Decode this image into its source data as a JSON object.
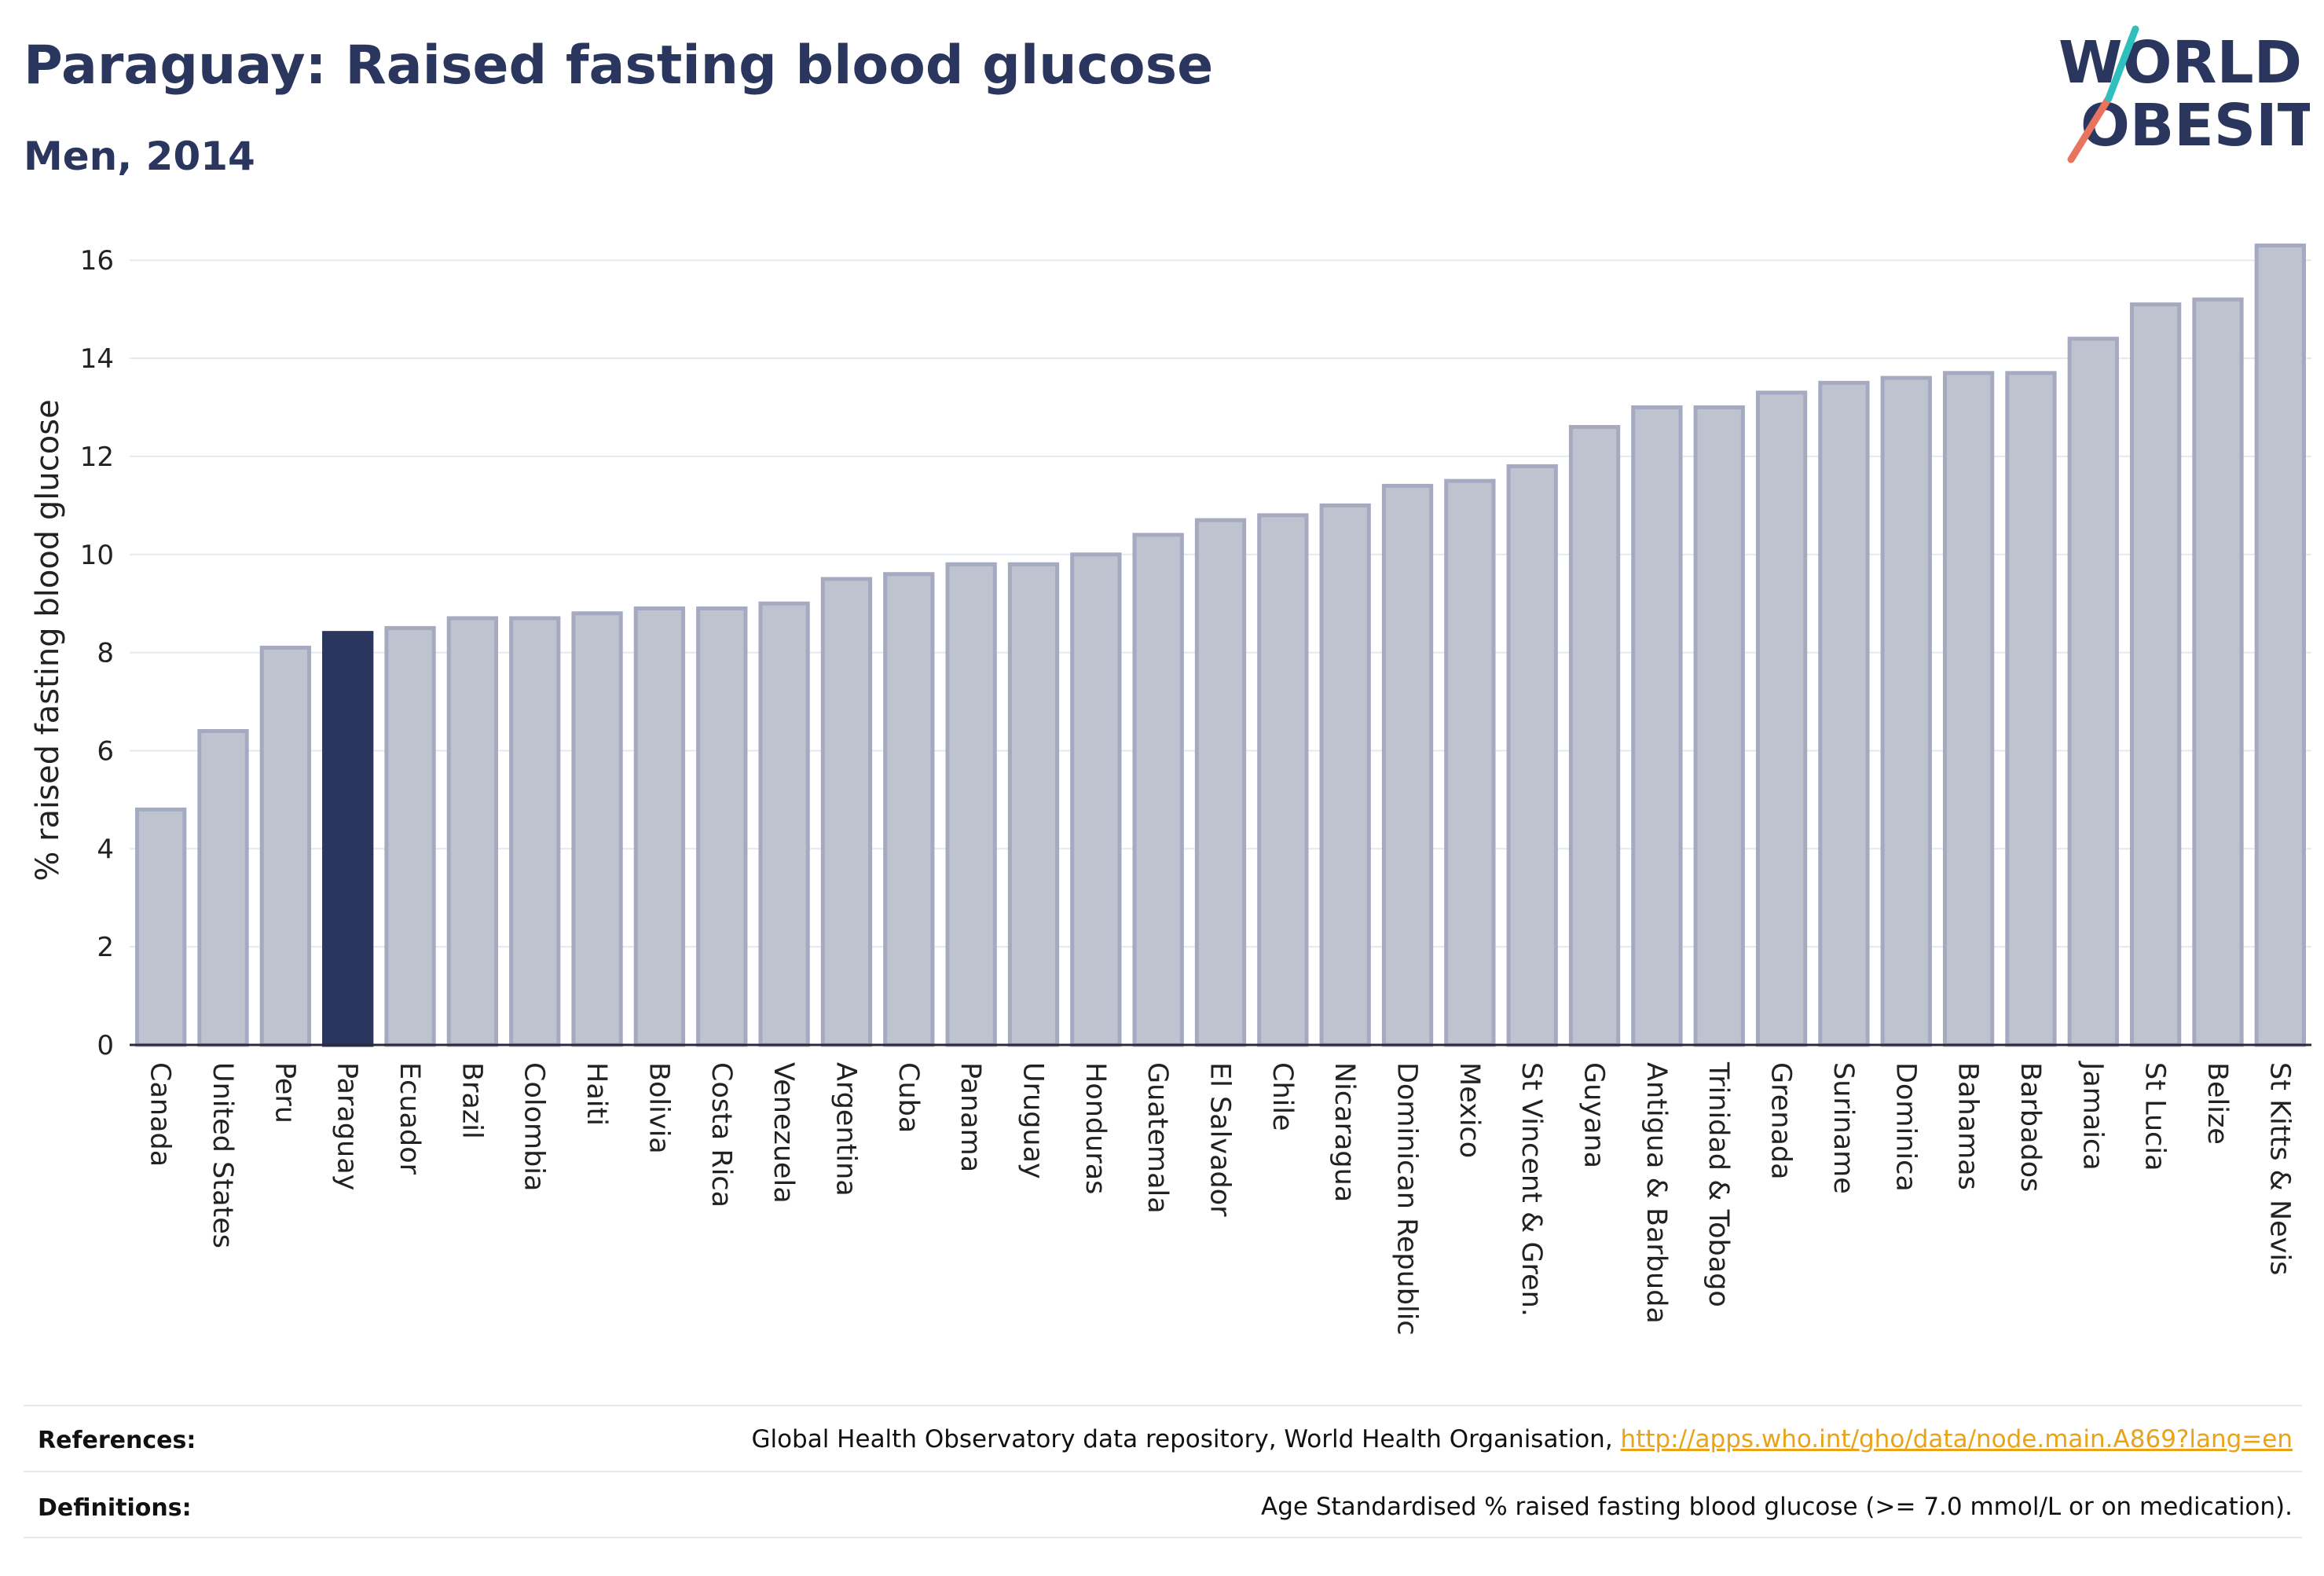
{
  "header": {
    "title": "Paraguay: Raised fasting blood glucose",
    "subtitle": "Men, 2014",
    "logo": {
      "line1": "WORLD",
      "line2": "OBESITY"
    }
  },
  "colors": {
    "bar": "#bfc3d0",
    "bar_border": "#a5aac0",
    "highlight": "#2b365e",
    "title": "#2b365e",
    "grid": "#e6e8ef",
    "link": "#e8a317",
    "logo_teal": "#2fbfbf",
    "logo_coral": "#e8735f"
  },
  "chart_data": {
    "type": "bar",
    "ylabel": "% raised fasting blood glucose",
    "xlabel": "",
    "ylim": [
      0,
      16.5
    ],
    "yticks": [
      0,
      2,
      4,
      6,
      8,
      10,
      12,
      14,
      16
    ],
    "grid": true,
    "highlight": "Paraguay",
    "categories": [
      "Canada",
      "United States",
      "Peru",
      "Paraguay",
      "Ecuador",
      "Brazil",
      "Colombia",
      "Haiti",
      "Bolivia",
      "Costa Rica",
      "Venezuela",
      "Argentina",
      "Cuba",
      "Panama",
      "Uruguay",
      "Honduras",
      "Guatemala",
      "El Salvador",
      "Chile",
      "Nicaragua",
      "Dominican Republic",
      "Mexico",
      "St Vincent & Gren.",
      "Guyana",
      "Antigua & Barbuda",
      "Trinidad & Tobago",
      "Grenada",
      "Suriname",
      "Dominica",
      "Bahamas",
      "Barbados",
      "Jamaica",
      "St Lucia",
      "Belize",
      "St Kitts & Nevis"
    ],
    "values": [
      4.8,
      6.4,
      8.1,
      8.4,
      8.5,
      8.7,
      8.7,
      8.8,
      8.9,
      8.9,
      9.0,
      9.5,
      9.6,
      9.8,
      9.8,
      10.0,
      10.4,
      10.7,
      10.8,
      11.0,
      11.4,
      11.5,
      11.8,
      12.6,
      13.0,
      13.0,
      13.3,
      13.5,
      13.6,
      13.7,
      13.7,
      14.4,
      15.1,
      15.2,
      16.3
    ]
  },
  "footer": {
    "references_label": "References:",
    "references_text": "Global Health Observatory data repository, World Health Organisation,",
    "references_link": "http://apps.who.int/gho/data/node.main.A869?lang=en",
    "definitions_label": "Definitions:",
    "definitions_text": "Age Standardised % raised fasting blood glucose (>= 7.0 mmol/L or on medication)."
  }
}
